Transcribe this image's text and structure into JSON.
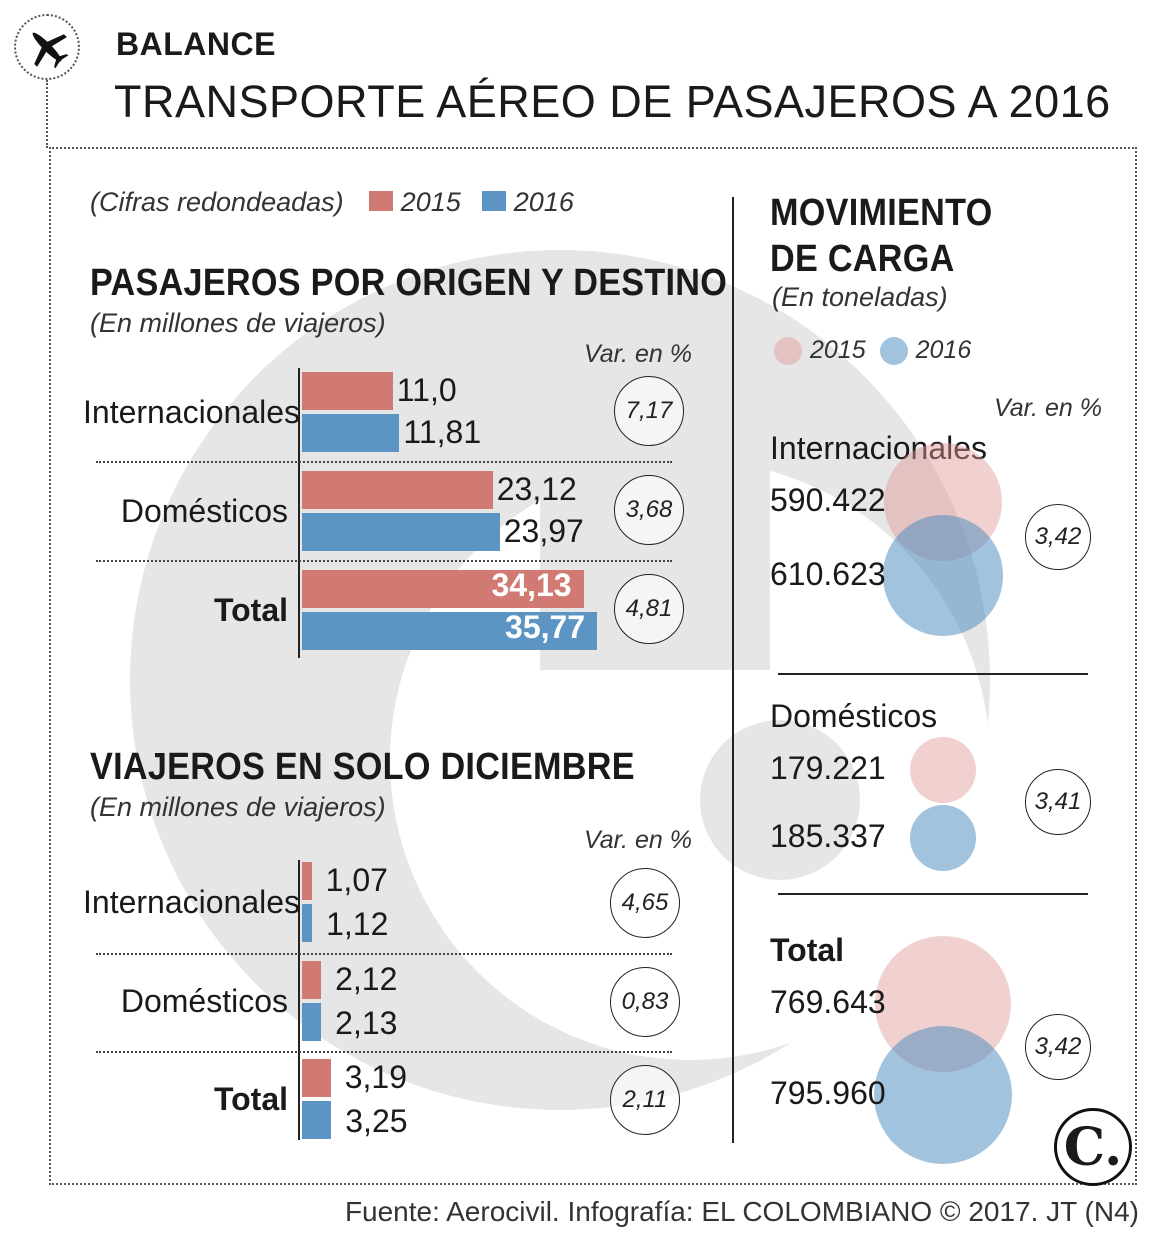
{
  "header": {
    "kicker": "BALANCE",
    "title": "TRANSPORTE AÉREO DE PASAJEROS A 2016"
  },
  "legend": {
    "note": "(Cifras redondeadas)",
    "label_2015": "2015",
    "label_2016": "2016"
  },
  "colors": {
    "y2015": "#d17a73",
    "y2016": "#5c95c4"
  },
  "icons": {
    "plane": "airplane-icon",
    "logo": "el-colombiano-logo"
  },
  "var_header": "Var. en %",
  "chart_data": [
    {
      "type": "bar",
      "title": "PASAJEROS POR ORIGEN Y DESTINO",
      "subtitle": "(En millones de viajeros)",
      "categories": [
        "Internacionales",
        "Domésticos",
        "Total"
      ],
      "series": [
        {
          "name": "2015",
          "values": [
            11.0,
            23.12,
            34.13
          ],
          "labels": [
            "11,0",
            "23,12",
            "34,13"
          ]
        },
        {
          "name": "2016",
          "values": [
            11.81,
            23.97,
            35.77
          ],
          "labels": [
            "11,81",
            "23,97",
            "35,77"
          ]
        }
      ],
      "variation": [
        "7,17",
        "3,68",
        "4,81"
      ]
    },
    {
      "type": "bar",
      "title": "VIAJEROS EN SOLO DICIEMBRE",
      "subtitle": "(En millones de viajeros)",
      "categories": [
        "Internacionales",
        "Domésticos",
        "Total"
      ],
      "series": [
        {
          "name": "2015",
          "values": [
            1.07,
            2.12,
            3.19
          ],
          "labels": [
            "1,07",
            "2,12",
            "3,19"
          ]
        },
        {
          "name": "2016",
          "values": [
            1.12,
            2.13,
            3.25
          ],
          "labels": [
            "1,12",
            "2,13",
            "3,25"
          ]
        }
      ],
      "variation": [
        "4,65",
        "0,83",
        "2,11"
      ]
    },
    {
      "type": "scatter",
      "title": "MOVIMIENTO DE CARGA",
      "subtitle": "(En toneladas)",
      "categories": [
        "Internacionales",
        "Domésticos",
        "Total"
      ],
      "series": [
        {
          "name": "2015",
          "values": [
            590422,
            179221,
            769643
          ],
          "labels": [
            "590.422",
            "179.221",
            "769.643"
          ]
        },
        {
          "name": "2016",
          "values": [
            610623,
            185337,
            795960
          ],
          "labels": [
            "610.623",
            "185.337",
            "795.960"
          ]
        }
      ],
      "variation": [
        "3,42",
        "3,41",
        "3,42"
      ]
    }
  ],
  "footer": {
    "source": "Fuente: Aerocivil. Infografía: EL COLOMBIANO © 2017. JT (N4)",
    "logo_text": "C."
  }
}
